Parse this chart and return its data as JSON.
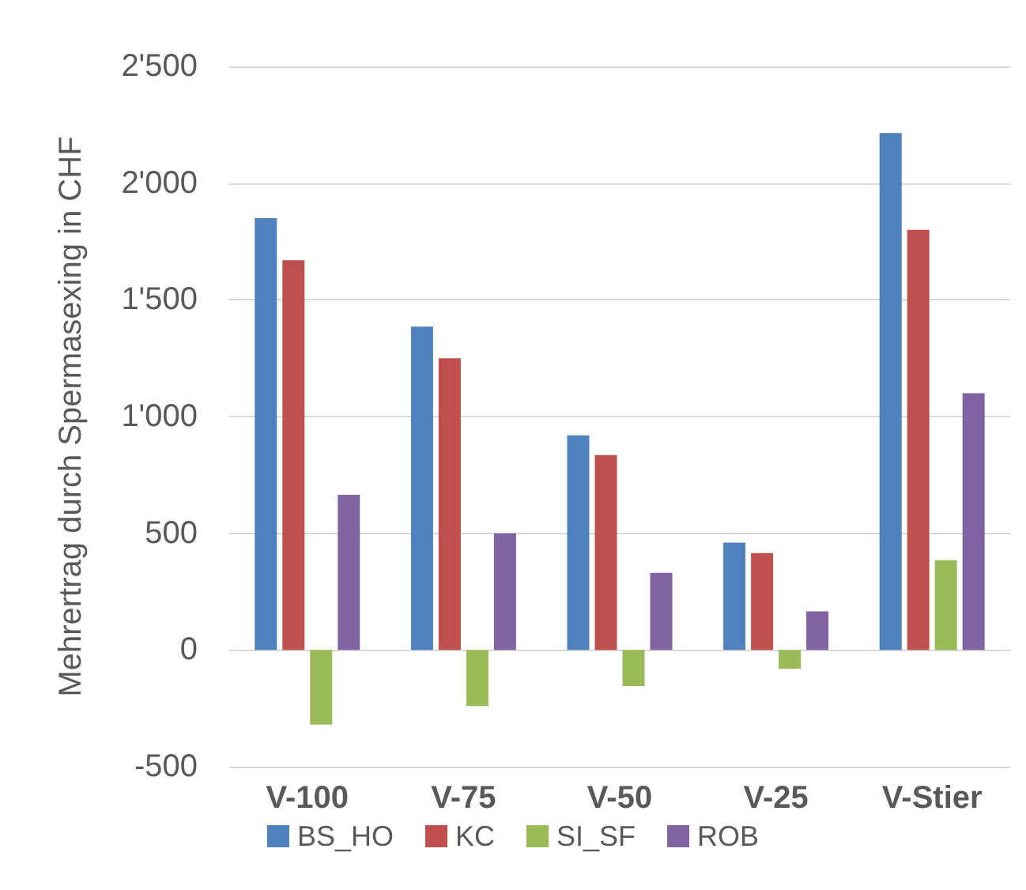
{
  "chart_data": {
    "type": "bar",
    "ylabel": "Mehrertrag durch Spermasexing in CHF",
    "categories": [
      "V-100",
      "V-75",
      "V-50",
      "V-25",
      "V-Stier"
    ],
    "series": [
      {
        "name": "BS_HO",
        "color": "#4f81bd",
        "values": [
          1850,
          1385,
          920,
          460,
          2215
        ]
      },
      {
        "name": "KC",
        "color": "#c0504d",
        "values": [
          1670,
          1250,
          835,
          415,
          1800
        ]
      },
      {
        "name": "SI_SF",
        "color": "#9bbb59",
        "values": [
          -320,
          -240,
          -155,
          -80,
          385
        ]
      },
      {
        "name": "ROB",
        "color": "#8064a2",
        "values": [
          665,
          500,
          330,
          165,
          1100
        ]
      }
    ],
    "ylim": [
      -500,
      2500
    ],
    "yticks": [
      {
        "value": -500,
        "label": "-500"
      },
      {
        "value": 0,
        "label": "0"
      },
      {
        "value": 500,
        "label": "500"
      },
      {
        "value": 1000,
        "label": "1'000"
      },
      {
        "value": 1500,
        "label": "1'500"
      },
      {
        "value": 2000,
        "label": "2'000"
      },
      {
        "value": 2500,
        "label": "2'500"
      }
    ],
    "grid": "y",
    "legend": "bottom"
  }
}
